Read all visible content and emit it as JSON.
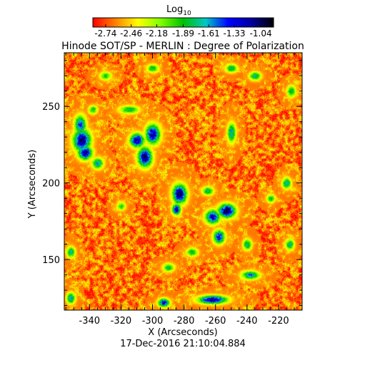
{
  "chart_data": {
    "type": "heatmap",
    "title": "Hinode SOT/SP - MERLIN : Degree of Polarization",
    "xlabel": "X (Arcseconds)",
    "ylabel": "Y (Arcseconds)",
    "timestamp": "17-Dec-2016 21:10:04.884",
    "xlim": [
      -356,
      -205
    ],
    "ylim": [
      117,
      285
    ],
    "xticks": [
      -340,
      -320,
      -300,
      -280,
      -260,
      -240,
      -220
    ],
    "yticks": [
      150,
      200,
      250
    ],
    "colorbar": {
      "title_base": "Log",
      "title_sub": "10",
      "range": [
        -2.88,
        -0.9
      ],
      "tick_values": [
        -2.74,
        -2.46,
        -2.18,
        -1.89,
        -1.61,
        -1.33,
        -1.04
      ],
      "tick_labels": [
        "-2.74",
        "-2.46",
        "-2.18",
        "-1.89",
        "-1.61",
        "-1.33",
        "-1.04"
      ],
      "colors": [
        "#ff0000",
        "#ff8000",
        "#ffff00",
        "#80ff00",
        "#00c000",
        "#00c8c8",
        "#0000ff",
        "#0000a0",
        "#000000"
      ]
    },
    "field": {
      "background_level": -2.65,
      "patches": [
        {
          "x": -345,
          "y": 228,
          "rx": 6,
          "ry": 8,
          "peak": -1.05
        },
        {
          "x": -343,
          "y": 220,
          "rx": 5,
          "ry": 5,
          "peak": -1.1
        },
        {
          "x": -346,
          "y": 238,
          "rx": 4,
          "ry": 7,
          "peak": -1.4
        },
        {
          "x": -338,
          "y": 248,
          "rx": 3,
          "ry": 3,
          "peak": -1.8
        },
        {
          "x": -305,
          "y": 217,
          "rx": 5,
          "ry": 7,
          "peak": -1.05
        },
        {
          "x": -310,
          "y": 228,
          "rx": 5,
          "ry": 5,
          "peak": -1.1
        },
        {
          "x": -300,
          "y": 232,
          "rx": 5,
          "ry": 7,
          "peak": -1.1
        },
        {
          "x": -315,
          "y": 248,
          "rx": 7,
          "ry": 3,
          "peak": -1.8
        },
        {
          "x": -335,
          "y": 213,
          "rx": 4,
          "ry": 4,
          "peak": -1.6
        },
        {
          "x": -283,
          "y": 193,
          "rx": 5,
          "ry": 7,
          "peak": -1.05
        },
        {
          "x": -285,
          "y": 183,
          "rx": 3,
          "ry": 4,
          "peak": -1.15
        },
        {
          "x": -253,
          "y": 182,
          "rx": 6,
          "ry": 5,
          "peak": -1.0
        },
        {
          "x": -262,
          "y": 178,
          "rx": 5,
          "ry": 5,
          "peak": -1.2
        },
        {
          "x": -258,
          "y": 165,
          "rx": 4,
          "ry": 5,
          "peak": -1.3
        },
        {
          "x": -265,
          "y": 195,
          "rx": 4,
          "ry": 3,
          "peak": -1.7
        },
        {
          "x": -250,
          "y": 233,
          "rx": 3,
          "ry": 7,
          "peak": -1.6
        },
        {
          "x": -262,
          "y": 124,
          "rx": 10,
          "ry": 3,
          "peak": -1.1
        },
        {
          "x": -293,
          "y": 122,
          "rx": 4,
          "ry": 3,
          "peak": -1.2
        },
        {
          "x": -352,
          "y": 125,
          "rx": 3,
          "ry": 4,
          "peak": -1.6
        },
        {
          "x": -238,
          "y": 140,
          "rx": 6,
          "ry": 3,
          "peak": -1.5
        },
        {
          "x": -240,
          "y": 160,
          "rx": 3,
          "ry": 4,
          "peak": -1.7
        },
        {
          "x": -250,
          "y": 275,
          "rx": 4,
          "ry": 3,
          "peak": -1.7
        },
        {
          "x": -235,
          "y": 270,
          "rx": 4,
          "ry": 3,
          "peak": -1.7
        },
        {
          "x": -300,
          "y": 275,
          "rx": 4,
          "ry": 3,
          "peak": -1.8
        },
        {
          "x": -212,
          "y": 260,
          "rx": 3,
          "ry": 4,
          "peak": -1.7
        },
        {
          "x": -215,
          "y": 200,
          "rx": 3,
          "ry": 4,
          "peak": -1.6
        },
        {
          "x": -213,
          "y": 160,
          "rx": 3,
          "ry": 4,
          "peak": -1.7
        },
        {
          "x": -225,
          "y": 190,
          "rx": 3,
          "ry": 3,
          "peak": -1.8
        },
        {
          "x": -275,
          "y": 155,
          "rx": 4,
          "ry": 3,
          "peak": -1.8
        },
        {
          "x": -320,
          "y": 185,
          "rx": 3,
          "ry": 3,
          "peak": -1.9
        },
        {
          "x": -352,
          "y": 155,
          "rx": 3,
          "ry": 4,
          "peak": -1.7
        },
        {
          "x": -330,
          "y": 270,
          "rx": 4,
          "ry": 3,
          "peak": -1.9
        },
        {
          "x": -290,
          "y": 145,
          "rx": 4,
          "ry": 3,
          "peak": -1.8
        }
      ]
    }
  }
}
